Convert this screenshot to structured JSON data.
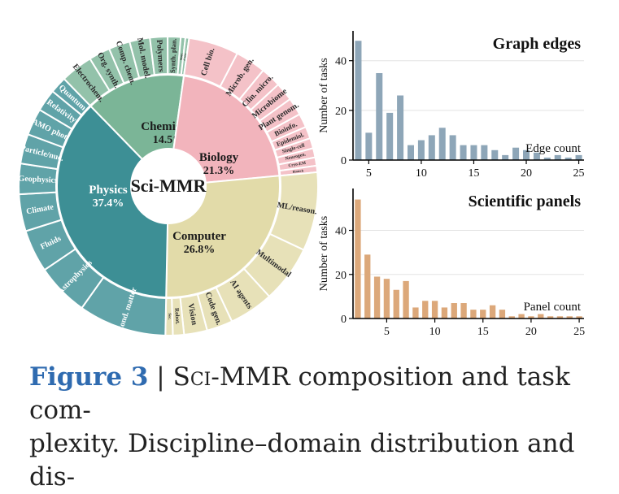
{
  "chart_data": [
    {
      "type": "sunburst",
      "center_label": "Sci-MMR",
      "disciplines": [
        {
          "name": "Chemistry",
          "share": "14.5%",
          "value": 14.5,
          "color": "#7bb597",
          "domains": [
            {
              "label": "Electrochem.",
              "value": 3.5
            },
            {
              "label": "Org. synth.",
              "value": 2.3
            },
            {
              "label": "Comp. chem.",
              "value": 2.3
            },
            {
              "label": "Mol. model.",
              "value": 2.2
            },
            {
              "label": "Polymers",
              "value": 1.9
            },
            {
              "label": "Synth. plan.",
              "value": 1.4
            },
            {
              "label": "Spec.",
              "value": 0.5
            },
            {
              "label": "Cata.",
              "value": 0.4
            }
          ]
        },
        {
          "name": "Biology",
          "share": "21.3%",
          "value": 21.3,
          "color": "#f2b4bc",
          "domains": [
            {
              "label": "Cell bio.",
              "value": 5.4
            },
            {
              "label": "Microb. gen.",
              "value": 3.3
            },
            {
              "label": "Clin. micro.",
              "value": 2.2
            },
            {
              "label": "Microbiome",
              "value": 2.0
            },
            {
              "label": "Plant genom.",
              "value": 1.9
            },
            {
              "label": "Bioinfo.",
              "value": 1.5
            },
            {
              "label": "Epidemiol.",
              "value": 1.3
            },
            {
              "label": "Single-cell",
              "value": 1.1
            },
            {
              "label": "Neurogen.",
              "value": 1.0
            },
            {
              "label": "Cryo-EM",
              "value": 0.9
            },
            {
              "label": "Biotech",
              "value": 0.7
            }
          ]
        },
        {
          "name": "Computer",
          "share": "26.8%",
          "value": 26.8,
          "color": "#e2dba9",
          "domains": [
            {
              "label": "ML/reason.",
              "value": 8.5
            },
            {
              "label": "Multimodal",
              "value": 6.2
            },
            {
              "label": "AI agents",
              "value": 4.8
            },
            {
              "label": "Code gen.",
              "value": 2.8
            },
            {
              "label": "Vision",
              "value": 2.5
            },
            {
              "label": "Robot.",
              "value": 1.2
            },
            {
              "label": "Sec.",
              "value": 0.8
            }
          ]
        },
        {
          "name": "Physics",
          "share": "37.4%",
          "value": 37.4,
          "color": "#3d8f95",
          "domains": [
            {
              "label": "Cond. matter",
              "value": 9.5
            },
            {
              "label": "Astrophysics",
              "value": 5.7
            },
            {
              "label": "Fluids",
              "value": 4.6
            },
            {
              "label": "Climate",
              "value": 4.0
            },
            {
              "label": "Geophysics",
              "value": 3.3
            },
            {
              "label": "Particle/nuc.",
              "value": 3.2
            },
            {
              "label": "AMO phot.",
              "value": 2.9
            },
            {
              "label": "Relativity",
              "value": 2.4
            },
            {
              "label": "Quantum",
              "value": 1.8
            }
          ]
        }
      ]
    },
    {
      "type": "bar",
      "title": "Graph edges",
      "xlabel": "Edge count",
      "ylabel": "Number of tasks",
      "color": "#8ea6b8",
      "x": [
        4,
        5,
        6,
        7,
        8,
        9,
        10,
        11,
        12,
        13,
        14,
        15,
        16,
        17,
        18,
        19,
        20,
        21,
        22,
        23,
        24,
        25
      ],
      "values": [
        48,
        11,
        35,
        19,
        26,
        6,
        8,
        10,
        13,
        10,
        6,
        6,
        6,
        4,
        2,
        5,
        4,
        3,
        1,
        2,
        1,
        2
      ],
      "xticks": [
        5,
        10,
        15,
        20,
        25
      ],
      "yticks": [
        0,
        20,
        40
      ],
      "ylim": [
        0,
        52
      ],
      "xlim": [
        3.5,
        25.5
      ],
      "grid": true
    },
    {
      "type": "bar",
      "title": "Scientific panels",
      "xlabel": "Panel count",
      "ylabel": "Number of tasks",
      "color": "#dca87a",
      "x": [
        2,
        3,
        4,
        5,
        6,
        7,
        8,
        9,
        10,
        11,
        12,
        13,
        14,
        15,
        16,
        17,
        18,
        19,
        20,
        21,
        22,
        23,
        24,
        25
      ],
      "values": [
        54,
        29,
        19,
        18,
        13,
        17,
        5,
        8,
        8,
        5,
        7,
        7,
        4,
        4,
        6,
        4,
        1,
        2,
        1,
        2,
        1,
        1,
        1,
        1
      ],
      "xticks": [
        5,
        10,
        15,
        20,
        25
      ],
      "yticks": [
        0,
        20,
        40
      ],
      "ylim": [
        0,
        59
      ],
      "xlim": [
        1.5,
        25.5
      ],
      "grid": true
    }
  ],
  "caption": {
    "figure_label": "Figure 3",
    "separator": " | ",
    "name": "Sci-MMR",
    "text_line1": " composition and task com-",
    "text_line2": "plexity. Discipline–domain distribution and dis-"
  }
}
